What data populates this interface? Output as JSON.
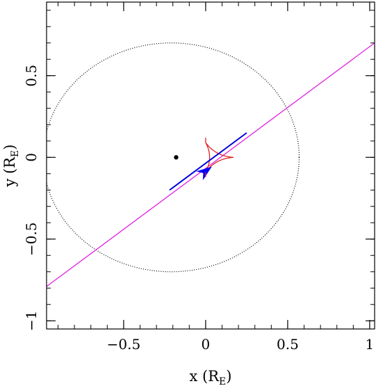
{
  "chart_data": {
    "type": "scatter",
    "xlim": [
      -0.97,
      1.03
    ],
    "ylim": [
      -1.05,
      0.95
    ],
    "xlabel": {
      "main": "x (R",
      "sub": "E",
      "close": ")"
    },
    "ylabel": {
      "main": "y (R",
      "sub": "E",
      "close": ")"
    },
    "x_ticks": [
      {
        "value": -0.5,
        "label": "−0.5"
      },
      {
        "value": 0,
        "label": "0"
      },
      {
        "value": 0.5,
        "label": "0.5"
      },
      {
        "value": 1,
        "label": "1"
      }
    ],
    "y_ticks": [
      {
        "value": -1,
        "label": "−1"
      },
      {
        "value": -0.5,
        "label": "−0.5"
      },
      {
        "value": 0,
        "label": "0"
      },
      {
        "value": 0.5,
        "label": "0.5"
      }
    ],
    "minor_step": 0.1,
    "grid": false,
    "lens_point": {
      "x": -0.18,
      "y": 0.0,
      "color": "#000000"
    },
    "dotted_circle": {
      "cx": -0.21,
      "cy": 0.0,
      "rx": 0.78,
      "ry": 0.7,
      "color": "#000000"
    },
    "magenta_line": {
      "x": [
        -0.97,
        1.03
      ],
      "y": [
        -0.79,
        0.7
      ],
      "color": "#e020e0"
    },
    "caustic": {
      "color": "#e02020",
      "x": [
        0.0,
        0.035,
        0.08,
        0.16,
        0.17,
        0.12,
        0.055,
        0.0
      ],
      "y": [
        0.12,
        0.07,
        0.05,
        0.01,
        0.0,
        -0.04,
        -0.1,
        -0.12
      ],
      "cusp_points": [
        [
          0.0,
          0.09
        ],
        [
          0.17,
          0.0
        ],
        [
          0.0,
          -0.09
        ]
      ]
    },
    "trajectory": {
      "x": [
        -0.22,
        0.25
      ],
      "y": [
        -0.2,
        0.15
      ],
      "color": "#0000dd"
    },
    "arrow": {
      "x": 0.0,
      "y": -0.085,
      "color": "#0000ff"
    }
  }
}
